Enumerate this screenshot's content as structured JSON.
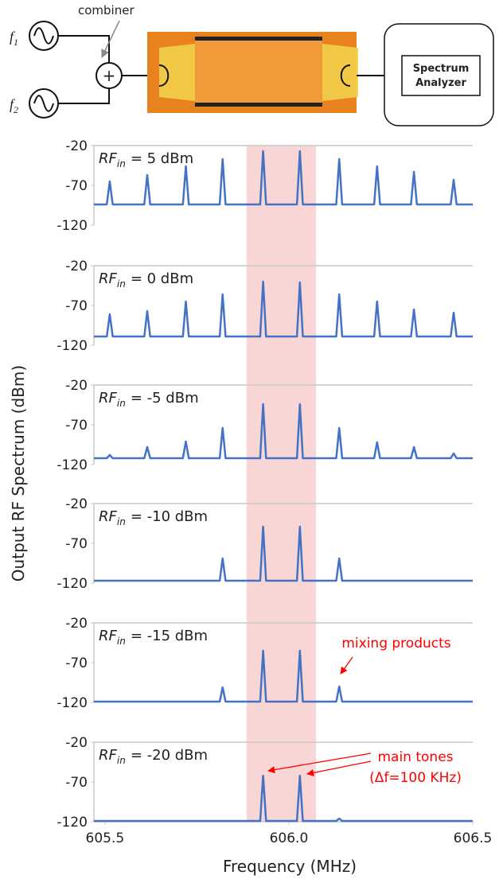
{
  "diagram": {
    "combiner_label": "combiner",
    "source_1": {
      "var": "f",
      "sub": "1"
    },
    "source_2": {
      "var": "f",
      "sub": "2"
    },
    "combiner_symbol": "+",
    "analyzer_label": [
      "Spectrum",
      "Analyzer"
    ]
  },
  "shared": {
    "ylabel": "Output RF Spectrum (dBm)",
    "xlabel": "Frequency (MHz)",
    "highlight_xrange": [
      605.885,
      606.074
    ],
    "highlight_color": "#f9d6d6"
  },
  "chart_data": [
    {
      "type": "line",
      "label_var": "RF",
      "label_sub": "in",
      "label_text": "= 5 dBm",
      "xlim": [
        605.47,
        606.5
      ],
      "ylim": [
        -120,
        -20
      ],
      "yticks": [
        -20,
        -70,
        -120
      ],
      "series": [
        {
          "color": "#4472c4",
          "x": [
            605.47,
            605.505,
            605.513,
            605.521,
            605.607,
            605.615,
            605.623,
            605.712,
            605.72,
            605.728,
            605.812,
            605.82,
            605.828,
            605.922,
            605.93,
            605.938,
            606.022,
            606.03,
            606.038,
            606.129,
            606.137,
            606.145,
            606.232,
            606.24,
            606.248,
            606.332,
            606.34,
            606.348,
            606.44,
            606.448,
            606.456,
            606.5
          ],
          "values": [
            -94,
            -94,
            -65,
            -94,
            -94,
            -57,
            -94,
            -94,
            -46,
            -94,
            -94,
            -37,
            -94,
            -94,
            -27,
            -94,
            -94,
            -27,
            -94,
            -94,
            -37,
            -94,
            -94,
            -46,
            -94,
            -94,
            -53,
            -94,
            -94,
            -63,
            -94,
            -94
          ]
        }
      ]
    },
    {
      "type": "line",
      "label_var": "RF",
      "label_sub": "in",
      "label_text": "= 0 dBm",
      "xlim": [
        605.47,
        606.5
      ],
      "ylim": [
        -120,
        -20
      ],
      "yticks": [
        -20,
        -70,
        -120
      ],
      "series": [
        {
          "color": "#4472c4",
          "x": [
            605.47,
            605.505,
            605.513,
            605.521,
            605.607,
            605.615,
            605.623,
            605.712,
            605.72,
            605.728,
            605.812,
            605.82,
            605.828,
            605.922,
            605.93,
            605.938,
            606.022,
            606.03,
            606.038,
            606.129,
            606.137,
            606.145,
            606.232,
            606.24,
            606.248,
            606.332,
            606.34,
            606.348,
            606.44,
            606.448,
            606.456,
            606.5
          ],
          "values": [
            -109,
            -109,
            -81,
            -109,
            -109,
            -77,
            -109,
            -109,
            -65,
            -109,
            -109,
            -56,
            -109,
            -109,
            -40,
            -109,
            -109,
            -41,
            -109,
            -109,
            -56,
            -109,
            -109,
            -65,
            -109,
            -109,
            -75,
            -109,
            -109,
            -79,
            -109,
            -109
          ]
        }
      ]
    },
    {
      "type": "line",
      "label_var": "RF",
      "label_sub": "in",
      "label_text": "= -5 dBm",
      "xlim": [
        605.47,
        606.5
      ],
      "ylim": [
        -120,
        -20
      ],
      "yticks": [
        -20,
        -70,
        -120
      ],
      "series": [
        {
          "color": "#4472c4",
          "x": [
            605.47,
            605.505,
            605.513,
            605.521,
            605.607,
            605.615,
            605.623,
            605.712,
            605.72,
            605.728,
            605.812,
            605.82,
            605.828,
            605.922,
            605.93,
            605.938,
            606.022,
            606.03,
            606.038,
            606.129,
            606.137,
            606.145,
            606.232,
            606.24,
            606.248,
            606.332,
            606.34,
            606.348,
            606.44,
            606.448,
            606.456,
            606.5
          ],
          "values": [
            -112,
            -112,
            -108,
            -112,
            -112,
            -98,
            -112,
            -112,
            -91,
            -112,
            -112,
            -74,
            -112,
            -112,
            -44,
            -112,
            -112,
            -44,
            -112,
            -112,
            -74,
            -112,
            -112,
            -92,
            -112,
            -112,
            -98,
            -112,
            -112,
            -106,
            -112,
            -112
          ]
        }
      ]
    },
    {
      "type": "line",
      "label_var": "RF",
      "label_sub": "in",
      "label_text": "= -10 dBm",
      "xlim": [
        605.47,
        606.5
      ],
      "ylim": [
        -120,
        -20
      ],
      "yticks": [
        -20,
        -70,
        -120
      ],
      "series": [
        {
          "color": "#4472c4",
          "x": [
            605.47,
            605.812,
            605.82,
            605.828,
            605.922,
            605.93,
            605.938,
            606.022,
            606.03,
            606.038,
            606.129,
            606.137,
            606.145,
            606.5
          ],
          "values": [
            -117,
            -117,
            -89,
            -117,
            -117,
            -49,
            -117,
            -117,
            -49,
            -117,
            -117,
            -89,
            -117,
            -117
          ]
        }
      ]
    },
    {
      "type": "line",
      "label_var": "RF",
      "label_sub": "in",
      "label_text": "= -15 dBm",
      "xlim": [
        605.47,
        606.5
      ],
      "ylim": [
        -120,
        -20
      ],
      "yticks": [
        -20,
        -70,
        -120
      ],
      "annotations": [
        "mixing products"
      ],
      "series": [
        {
          "color": "#4472c4",
          "x": [
            605.47,
            605.812,
            605.82,
            605.828,
            605.922,
            605.93,
            605.938,
            606.022,
            606.03,
            606.038,
            606.129,
            606.137,
            606.145,
            606.5
          ],
          "values": [
            -119,
            -119,
            -101,
            -119,
            -119,
            -55,
            -119,
            -119,
            -55,
            -119,
            -119,
            -100,
            -119,
            -119
          ]
        }
      ]
    },
    {
      "type": "line",
      "label_var": "RF",
      "label_sub": "in",
      "label_text": "= -20 dBm",
      "xlim": [
        605.47,
        606.5
      ],
      "ylim": [
        -120,
        -20
      ],
      "yticks": [
        -20,
        -70,
        -120
      ],
      "xticks": [
        605.5,
        {
          "value": 606,
          "label": "606.0"
        },
        606.5
      ],
      "annotations": [
        "main tones",
        "(Δf=100 KHz)"
      ],
      "series": [
        {
          "color": "#4472c4",
          "x": [
            605.47,
            605.922,
            605.93,
            605.938,
            606.022,
            606.03,
            606.038,
            606.129,
            606.137,
            606.145,
            606.5
          ],
          "values": [
            -119,
            -119,
            -62,
            -119,
            -119,
            -62,
            -119,
            -119,
            -116,
            -119,
            -119
          ]
        }
      ]
    }
  ]
}
